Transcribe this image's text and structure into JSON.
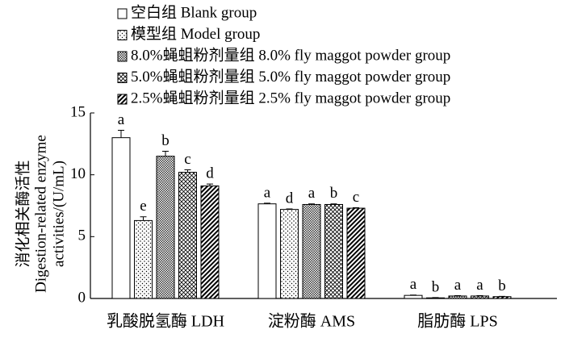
{
  "chart_data": {
    "type": "bar",
    "y_label": [
      "消化相关酶活性",
      "Digestion-related enzyme",
      "activities/(U/mL)"
    ],
    "categories": [
      "乳酸脱氢酶 LDH",
      "淀粉酶 AMS",
      "脂肪酶 LPS"
    ],
    "ylim": [
      0,
      15
    ],
    "yticks": [
      0,
      5,
      10,
      15
    ],
    "series": [
      {
        "name": "空白组 Blank group",
        "color": "#000000",
        "values": [
          13.0,
          7.65,
          0.25
        ],
        "errors": [
          0.6,
          0.05,
          0.03
        ],
        "labels": [
          "a",
          "a",
          "a"
        ]
      },
      {
        "name": "模型组 Model group",
        "color": "#000000",
        "values": [
          6.3,
          7.2,
          0.05
        ],
        "errors": [
          0.3,
          0.04,
          0.02
        ],
        "labels": [
          "e",
          "d",
          "b"
        ]
      },
      {
        "name": "8.0%蝇蛆粉剂量组 8.0% fly maggot powder  group",
        "color": "#000000",
        "values": [
          11.5,
          7.6,
          0.2
        ],
        "errors": [
          0.4,
          0.05,
          0.03
        ],
        "labels": [
          "b",
          "a",
          "a"
        ]
      },
      {
        "name": "5.0%蝇蛆粉剂量组 5.0% fly maggot powder  group",
        "color": "#000000",
        "values": [
          10.2,
          7.6,
          0.2
        ],
        "errors": [
          0.2,
          0.05,
          0.03
        ],
        "labels": [
          "c",
          "b",
          "a"
        ]
      },
      {
        "name": "2.5%蝇蛆粉剂量组 2.5% fly maggot powder  group",
        "color": "#000000",
        "values": [
          9.1,
          7.3,
          0.15
        ],
        "errors": [
          0.15,
          0.04,
          0.02
        ],
        "labels": [
          "d",
          "c",
          "b"
        ]
      }
    ]
  }
}
